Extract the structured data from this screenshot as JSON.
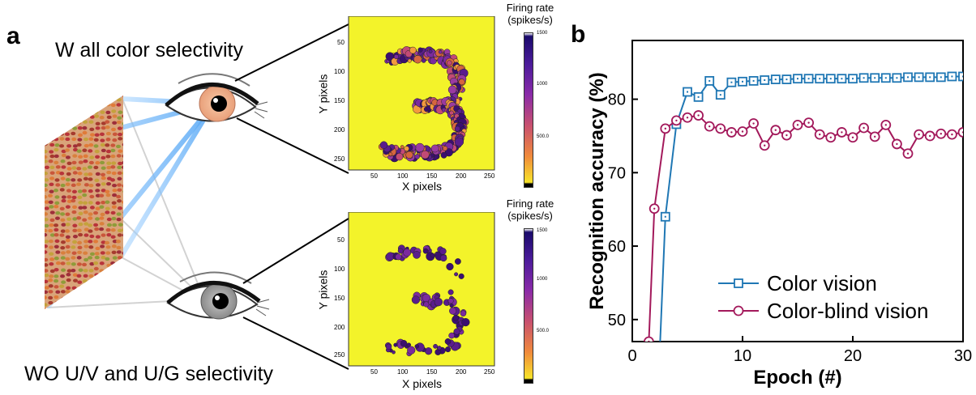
{
  "panel_a": {
    "label": "a",
    "top_caption": "W all color selectivity",
    "bottom_caption": "WO U/V and U/G selectivity",
    "maps": [
      {
        "xlabel": "X pixels",
        "ylabel": "Y pixels",
        "xticks": [
          "50",
          "100",
          "150",
          "200",
          "250"
        ],
        "yticks": [
          "50",
          "100",
          "150",
          "200",
          "250"
        ],
        "colorbar_title": "Firing rate (spikes/s)",
        "colorbar_ticks": [
          "1500",
          "1000",
          "500.0"
        ]
      },
      {
        "xlabel": "X pixels",
        "ylabel": "Y pixels",
        "xticks": [
          "50",
          "100",
          "150",
          "200",
          "250"
        ],
        "yticks": [
          "50",
          "100",
          "150",
          "200",
          "250"
        ],
        "colorbar_title": "Firing rate (spikes/s)",
        "colorbar_ticks": [
          "1500",
          "1000",
          "500.0"
        ]
      }
    ]
  },
  "chart_data": {
    "type": "line",
    "panel_label": "b",
    "xlabel": "Epoch (#)",
    "ylabel": "Recognition accuracy (%)",
    "xlim": [
      0,
      30
    ],
    "ylim": [
      47,
      88
    ],
    "xticks": [
      0,
      10,
      20,
      30
    ],
    "yticks": [
      50,
      60,
      70,
      80
    ],
    "legend_position": "bottom-right",
    "series": [
      {
        "name": "Color vision",
        "color": "#1f77b4",
        "marker": "square",
        "x": [
          1.5,
          2.5,
          3,
          4,
          5,
          6,
          7,
          8,
          9,
          10,
          11,
          12,
          13,
          14,
          15,
          16,
          17,
          18,
          19,
          20,
          21,
          22,
          23,
          24,
          25,
          26,
          27,
          28,
          29,
          30
        ],
        "values": [
          44,
          46,
          64,
          76.6,
          81,
          80.3,
          82.5,
          80.6,
          82.3,
          82.4,
          82.5,
          82.6,
          82.7,
          82.7,
          82.8,
          82.8,
          82.8,
          82.8,
          82.8,
          82.8,
          82.9,
          82.9,
          82.9,
          82.9,
          83,
          83,
          83,
          83,
          83.1,
          83.1
        ]
      },
      {
        "name": "Color-blind vision",
        "color": "#a3195b",
        "marker": "circle",
        "x": [
          1,
          1.5,
          2,
          3,
          4,
          5,
          6,
          7,
          8,
          9,
          10,
          11,
          12,
          13,
          14,
          15,
          16,
          17,
          18,
          19,
          20,
          21,
          22,
          23,
          24,
          25,
          26,
          27,
          28,
          29,
          30
        ],
        "values": [
          44,
          47,
          65.1,
          76,
          77.1,
          77.5,
          77.8,
          76.3,
          76,
          75.5,
          75.6,
          76.7,
          73.7,
          75.8,
          75.1,
          76.5,
          76.8,
          75.2,
          74.8,
          75.5,
          74.8,
          76.1,
          74.9,
          76.5,
          73.9,
          72.6,
          75.2,
          75,
          75.3,
          75.2,
          75.5
        ]
      }
    ]
  }
}
